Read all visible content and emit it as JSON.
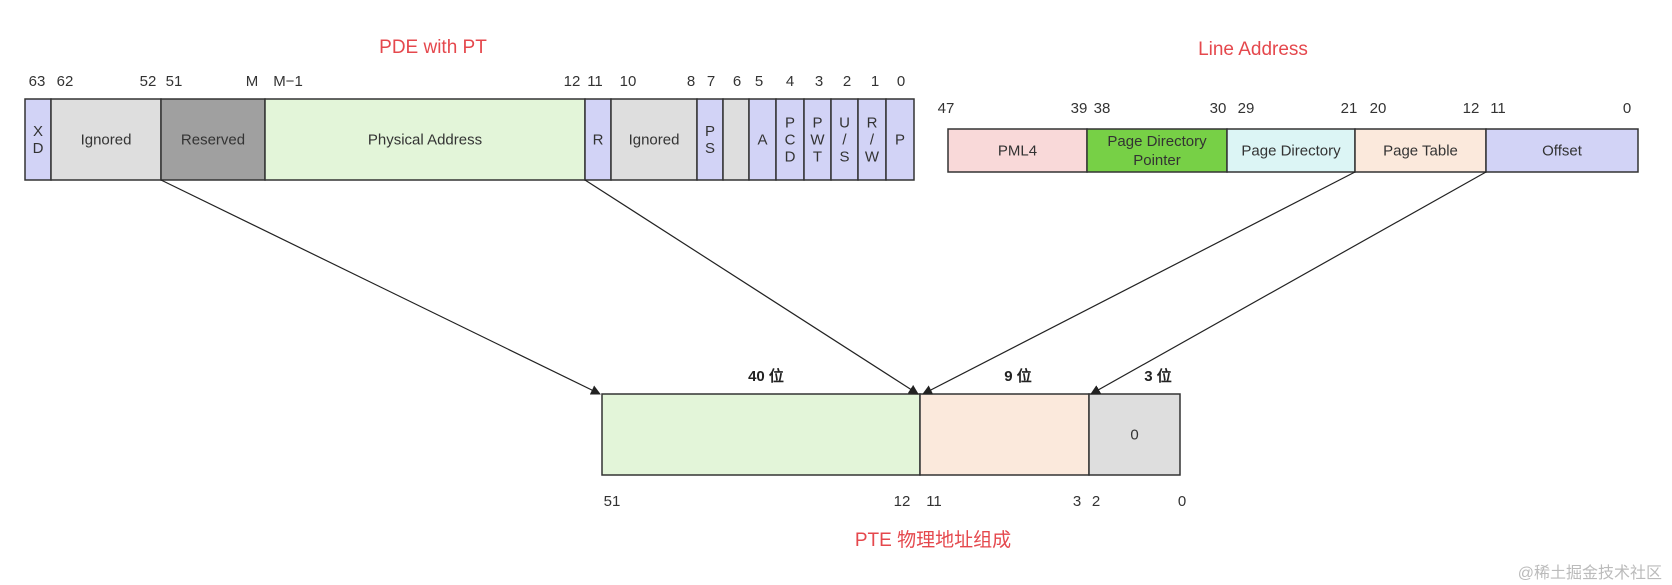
{
  "pde": {
    "title": "PDE with PT",
    "bit_labels": [
      "63",
      "62",
      "52",
      "51",
      "M",
      "M−1",
      "12",
      "11",
      "10",
      "8",
      "7",
      "6",
      "5",
      "4",
      "3",
      "2",
      "1",
      "0"
    ],
    "fields": [
      {
        "label": "X\nD",
        "color": "#d2d3f6"
      },
      {
        "label": "Ignored",
        "color": "#dedede"
      },
      {
        "label": "Reserved",
        "color": "#a0a0a0"
      },
      {
        "label": "Physical Address",
        "color": "#e3f5d9"
      },
      {
        "label": "R",
        "color": "#d2d3f6"
      },
      {
        "label": "Ignored",
        "color": "#dedede"
      },
      {
        "label": "P\nS",
        "color": "#d2d3f6"
      },
      {
        "label": "",
        "color": "#dedede"
      },
      {
        "label": "A",
        "color": "#d2d3f6"
      },
      {
        "label": "P\nC\nD",
        "color": "#d2d3f6"
      },
      {
        "label": "P\nW\nT",
        "color": "#d2d3f6"
      },
      {
        "label": "U\n/\nS",
        "color": "#d2d3f6"
      },
      {
        "label": "R\n/\nW",
        "color": "#d2d3f6"
      },
      {
        "label": "P",
        "color": "#d2d3f6"
      }
    ]
  },
  "line_address": {
    "title": "Line Address",
    "bit_labels": [
      "47",
      "39",
      "38",
      "30",
      "29",
      "21",
      "20",
      "12",
      "11",
      "0"
    ],
    "fields": [
      {
        "label": "PML4",
        "color": "#f9d9d9"
      },
      {
        "label": "Page Directory\nPointer",
        "color": "#77d046"
      },
      {
        "label": "Page Directory",
        "color": "#dcf5f5"
      },
      {
        "label": "Page Table",
        "color": "#fbe9dc"
      },
      {
        "label": "Offset",
        "color": "#d2d3f6"
      }
    ]
  },
  "pte": {
    "title": "PTE 物理地址组成",
    "width_labels": [
      "40 位",
      "9 位",
      "3 位"
    ],
    "bit_labels": [
      "51",
      "12",
      "11",
      "3",
      "2",
      "0"
    ],
    "fields": [
      {
        "label": "",
        "color": "#e3f5d9"
      },
      {
        "label": "",
        "color": "#fbe9dc"
      },
      {
        "label": "0",
        "color": "#dedede"
      }
    ]
  },
  "watermark": "@稀土掘金技术社区",
  "colors": {
    "title": "#e5484d",
    "border": "#333333"
  }
}
